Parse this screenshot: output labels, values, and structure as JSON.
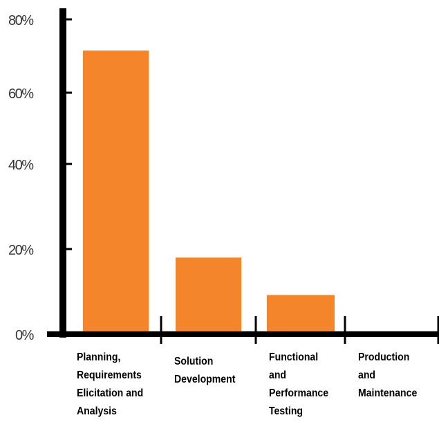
{
  "chart_data": {
    "type": "bar",
    "categories": [
      "Planning,\nRequirements\nElicitation and\nAnalysis",
      "Solution\nDevelopment",
      "Functional\nand\nPerformance\nTesting",
      "Production\nand\nMaintenance"
    ],
    "values": [
      71.5,
      18,
      9.2,
      0
    ],
    "ylim": [
      0,
      80
    ],
    "yticks": [
      0,
      20,
      40,
      60,
      80
    ],
    "ytick_labels": [
      "0%",
      "20%",
      "40%",
      "60%",
      "80%"
    ],
    "title": "",
    "xlabel": "",
    "ylabel": "",
    "grid": false,
    "legend": "none",
    "bar_color": "#F5852B",
    "axis_color": "#000000"
  }
}
